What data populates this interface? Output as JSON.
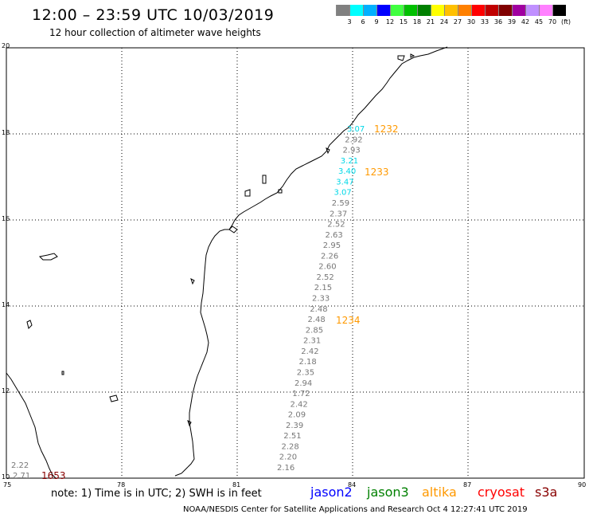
{
  "header": {
    "title": "12:00 – 23:59 UTC 10/03/2019",
    "subtitle": "12 hour collection of altimeter wave heights"
  },
  "legend": {
    "unit": "(ft)",
    "colors": [
      "#808080",
      "#00ffff",
      "#00b0ff",
      "#0000ff",
      "#40ff40",
      "#00c000",
      "#008000",
      "#ffff00",
      "#ffc000",
      "#ff8000",
      "#ff0000",
      "#c00000",
      "#800000",
      "#a000a0",
      "#c090ff",
      "#ff80ff",
      "#000000"
    ],
    "labels": [
      "3",
      "6",
      "9",
      "12",
      "15",
      "18",
      "21",
      "24",
      "27",
      "30",
      "33",
      "36",
      "39",
      "42",
      "45",
      "70"
    ]
  },
  "axes": {
    "x_ticks": [
      "75",
      "78",
      "81",
      "84",
      "87",
      "90"
    ],
    "y_ticks": [
      "20",
      "18",
      "16",
      "14",
      "12",
      "10"
    ]
  },
  "times": {
    "t1": "1232",
    "t2": "1233",
    "t3": "1234",
    "t4": "1653"
  },
  "observations": {
    "track1": [
      "3.07",
      "2.92",
      "2.93",
      "3.21",
      "3.40",
      "3.47",
      "3.07",
      "2.59",
      "2.37",
      "2.52",
      "2.63",
      "2.95",
      "2.26",
      "2.60",
      "2.52",
      "2.15",
      "2.33",
      "2.48",
      "2.48",
      "2.85",
      "2.31",
      "2.42",
      "2.18",
      "2.35",
      "2.94",
      "1.72",
      "2.42",
      "2.09",
      "2.39",
      "2.51",
      "2.28",
      "2.20",
      "2.16"
    ],
    "track1_colors": [
      "#00d8e8",
      "#777777",
      "#777777",
      "#00d8e8",
      "#00d8e8",
      "#00d8e8",
      "#00d8e8",
      "#777777",
      "#777777",
      "#777777",
      "#777777",
      "#777777",
      "#777777",
      "#777777",
      "#777777",
      "#777777",
      "#777777",
      "#777777",
      "#777777",
      "#777777",
      "#777777",
      "#777777",
      "#777777",
      "#777777",
      "#777777",
      "#777777",
      "#777777",
      "#777777",
      "#777777",
      "#777777",
      "#777777",
      "#777777",
      "#777777"
    ],
    "track2": [
      "2.22",
      "2.71"
    ]
  },
  "footer": {
    "note": "note:  1) Time is in UTC;  2) SWH is in feet",
    "satellites": [
      {
        "name": "jason2",
        "color": "#0000ff"
      },
      {
        "name": "jason3",
        "color": "#008000"
      },
      {
        "name": "altika",
        "color": "#ff9900"
      },
      {
        "name": "cryosat",
        "color": "#ff0000"
      },
      {
        "name": "s3a",
        "color": "#880000"
      }
    ],
    "credit": "NOAA/NESDIS Center for Satellite Applications and Research    Oct  4 12:27:41 UTC 2019"
  },
  "colors": {
    "altika_time": "#ff9900",
    "s3a_time": "#880000",
    "grid": "#000000"
  }
}
